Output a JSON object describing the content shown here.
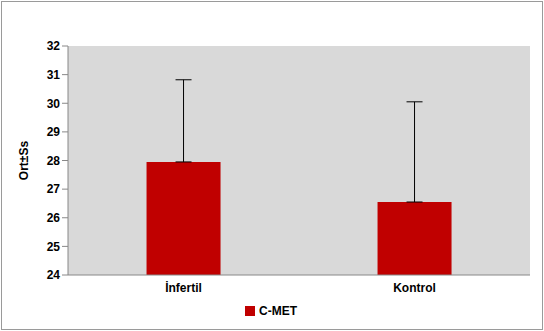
{
  "chart_data": {
    "type": "bar",
    "categories": [
      "İnfertil",
      "Kontrol"
    ],
    "series": [
      {
        "name": "C-MET",
        "color": "#c00000",
        "values": [
          27.95,
          26.55
        ],
        "errors": [
          2.87,
          3.5
        ]
      }
    ],
    "y_label": "Ort±Ss",
    "ylim": [
      24,
      32
    ],
    "yticks": [
      24,
      25,
      26,
      27,
      28,
      29,
      30,
      31,
      32
    ],
    "grid": false,
    "legend": "bottom"
  }
}
